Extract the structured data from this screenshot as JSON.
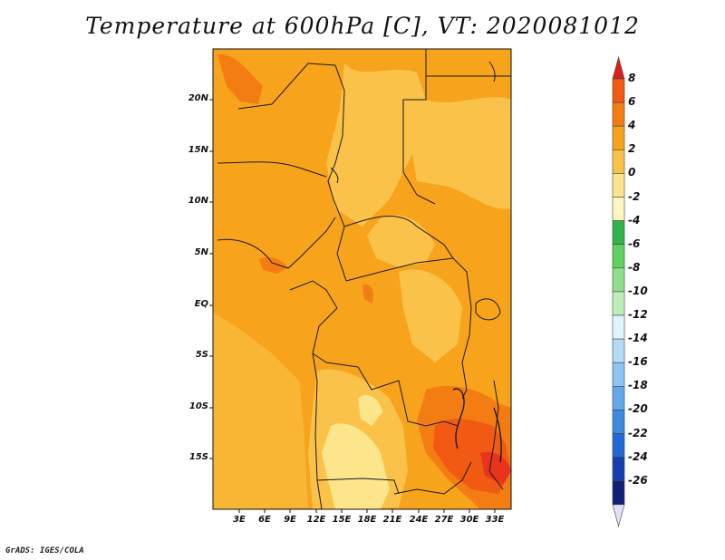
{
  "title": "Temperature at 600hPa [C], VT: 2020081012",
  "credit": "GrADS: IGES/COLA",
  "map": {
    "region": "Central and Southern Africa",
    "lon_range": [
      0,
      35
    ],
    "lat_range": [
      -20,
      24
    ],
    "lat_labels": [
      "20N",
      "15N",
      "10N",
      "5N",
      "EQ",
      "5S",
      "10S",
      "15S"
    ],
    "lon_labels": [
      "3E",
      "6E",
      "9E",
      "12E",
      "15E",
      "18E",
      "21E",
      "24E",
      "27E",
      "30E",
      "33E"
    ]
  },
  "colorbar": {
    "labels": [
      "8",
      "6",
      "4",
      "2",
      "0",
      "-2",
      "-4",
      "-6",
      "-8",
      "-10",
      "-12",
      "-14",
      "-16",
      "-18",
      "-20",
      "-22",
      "-24",
      "-26"
    ],
    "colors": [
      "#e8341c",
      "#f25a14",
      "#f47d13",
      "#f7a31c",
      "#fbc24a",
      "#fde58c",
      "#fef7c0",
      "#30b44a",
      "#5ed05f",
      "#8fe08b",
      "#bdf0b8",
      "#e0f5ff",
      "#b4dcf8",
      "#8cc4f2",
      "#63a9ea",
      "#3c8be0",
      "#1f6ad4",
      "#1540b0",
      "#10207a"
    ],
    "top_arrow_color": "#d9221a",
    "bottom_arrow_color": "#e0e0f8"
  }
}
